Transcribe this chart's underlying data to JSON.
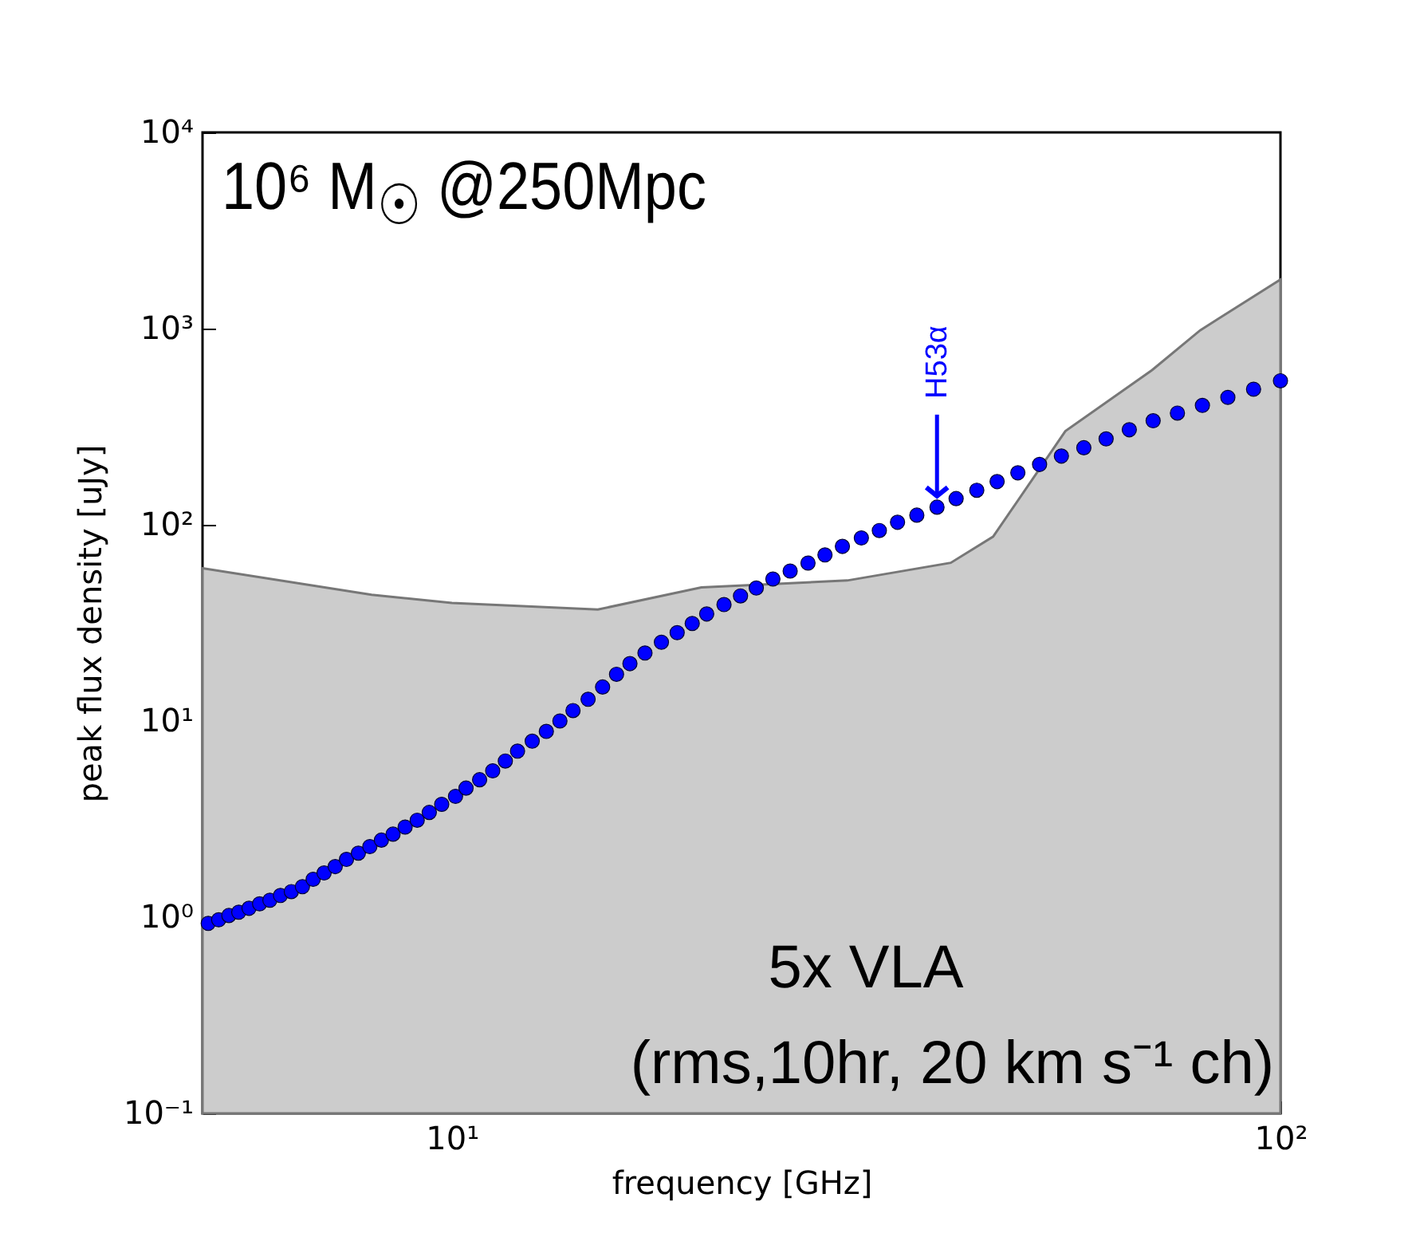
{
  "chart_data": {
    "type": "scatter",
    "xlabel": "frequency [GHz]",
    "ylabel": "peak flux density [uJy]",
    "log": "xy",
    "grid": false,
    "xlim": [
      5,
      100
    ],
    "xticks": [
      {
        "value": 10,
        "label": "10¹"
      },
      {
        "value": 100,
        "label": "10²"
      }
    ],
    "ylim": [
      0.1,
      10000
    ],
    "yticks": [
      {
        "value": 0.1,
        "label": "10⁻¹"
      },
      {
        "value": 1,
        "label": "10⁰"
      },
      {
        "value": 10,
        "label": "10¹"
      },
      {
        "value": 100,
        "label": "10²"
      },
      {
        "value": 1000,
        "label": "10³"
      },
      {
        "value": 10000,
        "label": "10⁴"
      }
    ],
    "annotations": [
      "10⁶ M$_{☉}$ @250Mpc",
      "5x VLA",
      "(rms,10hr, 20 km s⁻¹ ch)",
      {
        "text": "H53α",
        "x": 38.5,
        "y": 123
      }
    ],
    "series": [
      {
        "type": "area",
        "color": "#cccccc",
        "x": [
          5,
          8,
          10,
          15,
          20,
          30,
          40,
          45,
          55,
          70,
          80,
          100
        ],
        "values": [
          60,
          44,
          40,
          37,
          48,
          52,
          64,
          87,
          300,
          615,
          980,
          1780
        ]
      },
      {
        "color": "#0000ff",
        "marker": "circle",
        "x": [
          5.08,
          5.23,
          5.38,
          5.53,
          5.69,
          5.86,
          6.03,
          6.21,
          6.4,
          6.6,
          6.8,
          7.01,
          7.23,
          7.46,
          7.71,
          7.96,
          8.22,
          8.49,
          8.78,
          9.08,
          9.39,
          9.72,
          10.1,
          10.4,
          10.8,
          11.2,
          11.6,
          12.0,
          12.5,
          13.0,
          13.5,
          14.0,
          14.6,
          15.2,
          15.8,
          16.4,
          17.1,
          17.9,
          18.7,
          19.5,
          20.3,
          21.3,
          22.3,
          23.3,
          24.4,
          25.6,
          26.9,
          28.2,
          29.6,
          31.2,
          32.8,
          34.5,
          36.4,
          38.5,
          40.6,
          43.0,
          45.5,
          48.2,
          51.2,
          54.4,
          57.9,
          61.6,
          65.7,
          70.2,
          75.1,
          80.5,
          86.4,
          92.8,
          100
        ],
        "values": [
          0.93,
          0.97,
          1.02,
          1.06,
          1.11,
          1.17,
          1.22,
          1.29,
          1.35,
          1.43,
          1.56,
          1.68,
          1.81,
          1.97,
          2.12,
          2.29,
          2.47,
          2.65,
          2.88,
          3.12,
          3.42,
          3.76,
          4.13,
          4.55,
          5.02,
          5.57,
          6.25,
          7.02,
          7.89,
          8.85,
          10.0,
          11.3,
          12.9,
          14.9,
          17.3,
          19.6,
          22.2,
          25.2,
          28.2,
          31.4,
          35.1,
          39.2,
          43.4,
          47.6,
          52.9,
          58.1,
          63.8,
          70.2,
          77.6,
          85.7,
          93.5,
          103,
          112,
          123,
          136,
          150,
          166,
          184,
          203,
          224,
          247,
          274,
          305,
          339,
          371,
          406,
          446,
          491,
          542
        ]
      }
    ]
  }
}
